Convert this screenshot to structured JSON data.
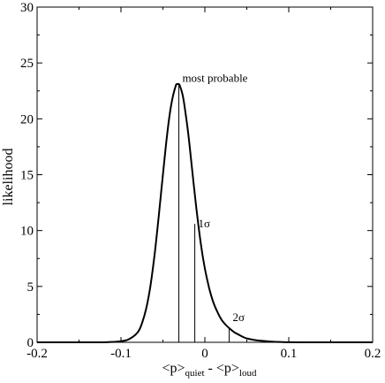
{
  "chart_data": {
    "type": "line",
    "title": "",
    "ylabel": "likelihood",
    "xlabel": {
      "open": "<p>",
      "sub1": "quiet",
      "mid": " - <p>",
      "sub2": "loud"
    },
    "xlim": [
      -0.2,
      0.2
    ],
    "ylim": [
      0,
      30
    ],
    "x_ticks": [
      -0.2,
      -0.1,
      0,
      0.1,
      0.2
    ],
    "x_tick_labels": [
      "-0.2",
      "-0.1",
      "0",
      "0.1",
      "0.2"
    ],
    "y_ticks": [
      0,
      5,
      10,
      15,
      20,
      25,
      30
    ],
    "y_tick_labels": [
      "0",
      "5",
      "10",
      "15",
      "20",
      "25",
      "30"
    ],
    "grid": false,
    "legend": "none",
    "series": [
      {
        "x": [
          -0.2,
          -0.18,
          -0.16,
          -0.14,
          -0.12,
          -0.1,
          -0.09,
          -0.08,
          -0.075,
          -0.07,
          -0.065,
          -0.06,
          -0.055,
          -0.05,
          -0.045,
          -0.04,
          -0.035,
          -0.033,
          -0.031,
          -0.03,
          -0.027,
          -0.025,
          -0.02,
          -0.015,
          -0.01,
          -0.005,
          0,
          0.005,
          0.01,
          0.015,
          0.02,
          0.025,
          0.03,
          0.035,
          0.04,
          0.045,
          0.05,
          0.06,
          0.07,
          0.08,
          0.09,
          0.1,
          0.12,
          0.14,
          0.16,
          0.18,
          0.2
        ],
        "y": [
          0,
          0,
          0,
          0,
          0,
          0.1,
          0.3,
          0.9,
          1.7,
          3.0,
          5.0,
          7.8,
          11.3,
          15.0,
          18.6,
          21.3,
          22.9,
          23.1,
          23.1,
          23.0,
          22.3,
          21.5,
          18.8,
          15.3,
          11.9,
          8.9,
          6.6,
          4.9,
          3.6,
          2.7,
          2.0,
          1.55,
          1.2,
          0.9,
          0.7,
          0.5,
          0.35,
          0.2,
          0.12,
          0.06,
          0.03,
          0.01,
          0,
          0,
          0,
          0,
          0
        ]
      }
    ],
    "vertical_markers": [
      {
        "x": -0.031,
        "y": 23.1
      },
      {
        "x": -0.012,
        "y": 10.6
      },
      {
        "x": 0.029,
        "y": 1.3
      }
    ],
    "annotations": [
      {
        "text": "most probable",
        "x": -0.029,
        "y": 23.3
      },
      {
        "text": "1σ",
        "x": -0.01,
        "y": 10.3
      },
      {
        "text": "2σ",
        "x": 0.031,
        "y": 1.9
      }
    ],
    "line_color": "#000000"
  }
}
